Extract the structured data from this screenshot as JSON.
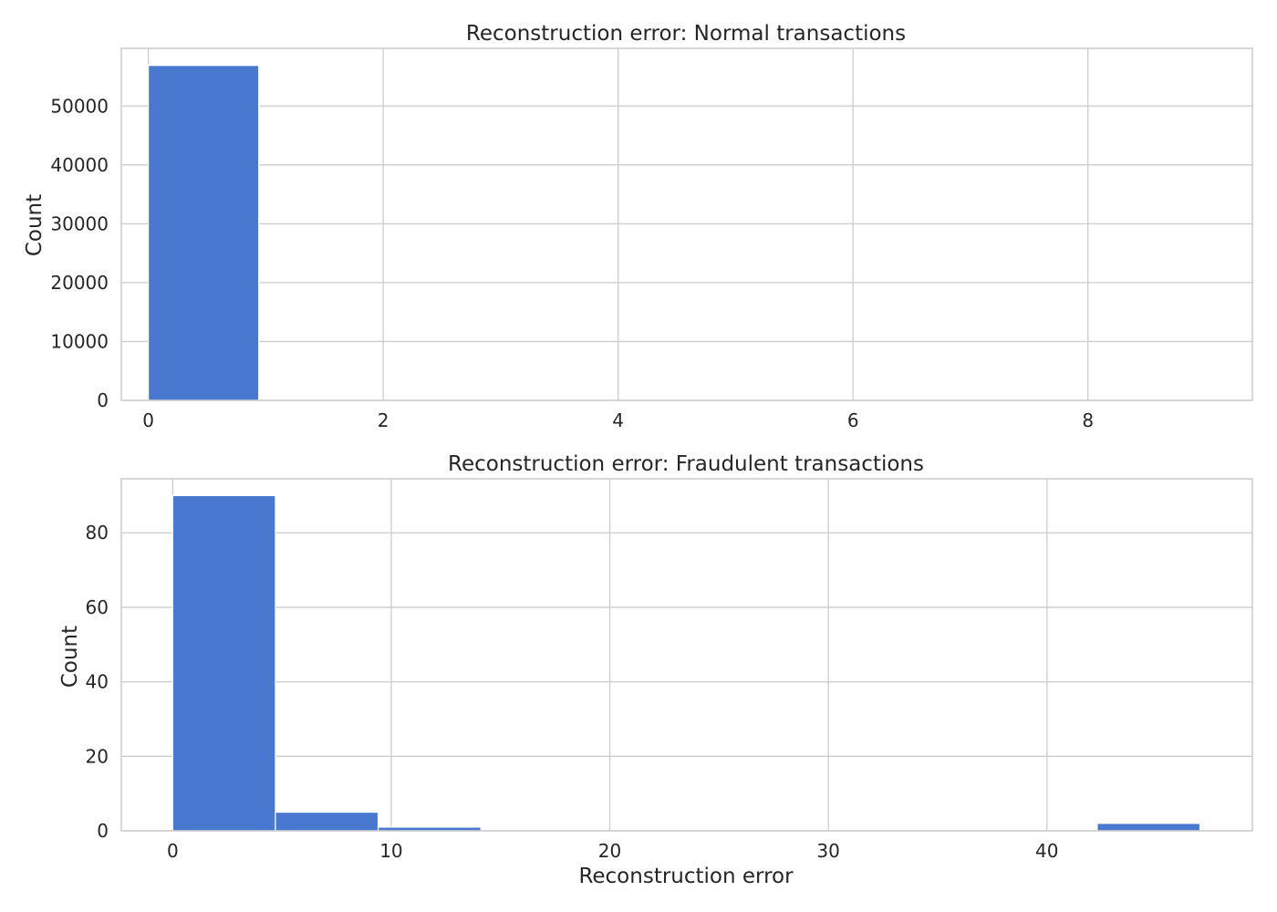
{
  "chart_data": [
    {
      "type": "bar",
      "title": "Reconstruction error: Normal transactions",
      "xlabel": "",
      "ylabel": "Count",
      "xlim": [
        -0.23,
        9.4
      ],
      "ylim": [
        0,
        59800
      ],
      "xticks": [
        0,
        2,
        4,
        6,
        8
      ],
      "yticks": [
        0,
        10000,
        20000,
        30000,
        40000,
        50000
      ],
      "grid": true,
      "bins": [
        {
          "x0": 0.0,
          "x1": 0.94,
          "count": 56900
        }
      ],
      "color": "#4878d0"
    },
    {
      "type": "bar",
      "title": "Reconstruction error: Fraudulent transactions",
      "xlabel": "Reconstruction error",
      "ylabel": "Count",
      "xlim": [
        -2.35,
        49.4
      ],
      "ylim": [
        0,
        94.5
      ],
      "xticks": [
        0,
        10,
        20,
        30,
        40
      ],
      "yticks": [
        0,
        20,
        40,
        60,
        80
      ],
      "grid": true,
      "bins": [
        {
          "x0": 0.0,
          "x1": 4.7,
          "count": 90
        },
        {
          "x0": 4.7,
          "x1": 9.4,
          "count": 5
        },
        {
          "x0": 9.4,
          "x1": 14.1,
          "count": 1
        },
        {
          "x0": 14.1,
          "x1": 18.8,
          "count": 0
        },
        {
          "x0": 18.8,
          "x1": 23.5,
          "count": 0
        },
        {
          "x0": 23.5,
          "x1": 28.2,
          "count": 0
        },
        {
          "x0": 28.2,
          "x1": 32.9,
          "count": 0
        },
        {
          "x0": 32.9,
          "x1": 37.6,
          "count": 0
        },
        {
          "x0": 37.6,
          "x1": 42.3,
          "count": 0
        },
        {
          "x0": 42.3,
          "x1": 47.0,
          "count": 2
        }
      ],
      "color": "#4878d0"
    }
  ]
}
